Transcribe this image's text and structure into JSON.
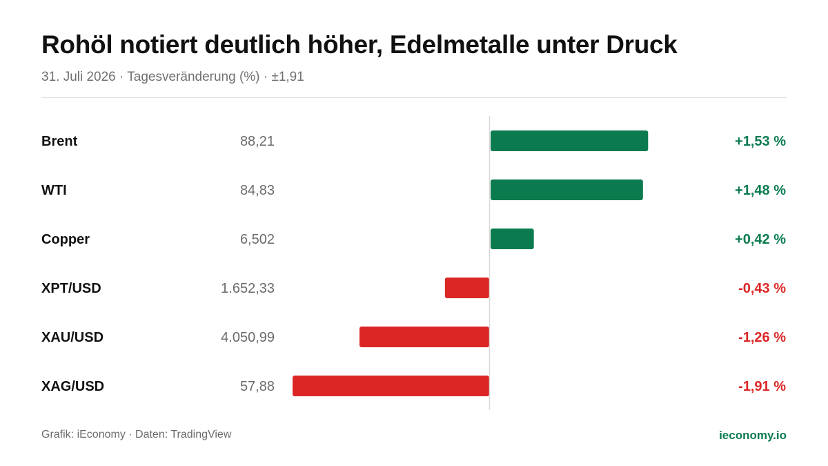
{
  "header": {
    "title": "Rohöl notiert deutlich höher, Edelmetalle unter Druck",
    "subtitle": "31. Juli 2026 · Tagesveränderung (%) · ±1,91"
  },
  "colors": {
    "positive": "#0b7b4f",
    "negative": "#dc2626",
    "brand": "#0b7b4f",
    "axis": "#d9d9d9"
  },
  "chart_data": {
    "type": "bar",
    "orientation": "horizontal",
    "categories": [
      "Brent",
      "WTI",
      "Copper",
      "XPT/USD",
      "XAU/USD",
      "XAG/USD"
    ],
    "prices": [
      "88,21",
      "84,83",
      "6,502",
      "1.652,33",
      "4.050,99",
      "57,88"
    ],
    "values": [
      1.53,
      1.48,
      0.42,
      -0.43,
      -1.26,
      -1.91
    ],
    "value_labels": [
      "+1,53 %",
      "+1,48 %",
      "+0,42 %",
      "-0,43 %",
      "-1,26 %",
      "-1,91 %"
    ],
    "xlim": [
      -1.91,
      1.91
    ],
    "grid": false,
    "legend": "none"
  },
  "footer": {
    "source": "Grafik: iEconomy · Daten: TradingView",
    "brand": "ieconomy.io"
  }
}
